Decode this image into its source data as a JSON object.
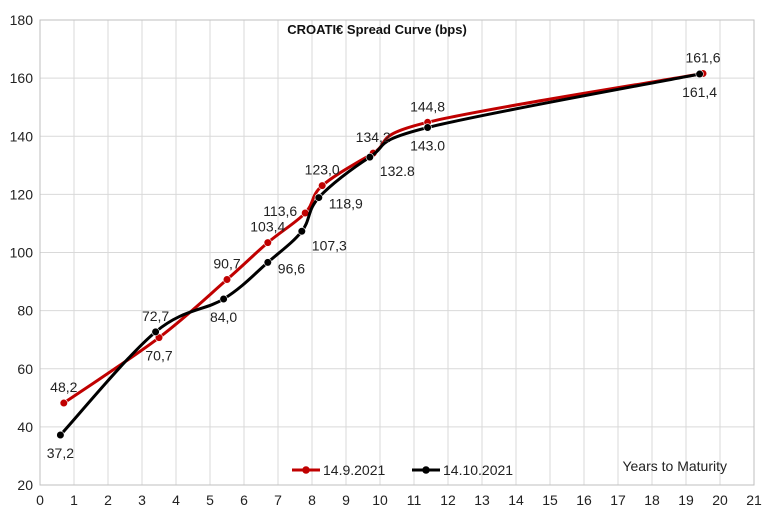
{
  "chart_data": {
    "type": "line",
    "title": "CROATI€ Spread Curve (bps)",
    "xlabel": "Years to Maturity",
    "ylabel": "",
    "xlim": [
      0,
      21
    ],
    "ylim": [
      20,
      180
    ],
    "xticks": [
      "0",
      "1",
      "2",
      "3",
      "4",
      "5",
      "6",
      "7",
      "8",
      "9",
      "10",
      "11",
      "12",
      "13",
      "14",
      "15",
      "16",
      "17",
      "18",
      "19",
      "20",
      "21"
    ],
    "yticks": [
      "20",
      "40",
      "60",
      "80",
      "100",
      "120",
      "140",
      "160",
      "180"
    ],
    "grid": true,
    "legend_position": "bottom-center",
    "series": [
      {
        "name": "14.9.2021",
        "color": "#c00000",
        "x": [
          0.7,
          3.5,
          5.5,
          6.7,
          7.8,
          8.3,
          9.8,
          11.4,
          19.5
        ],
        "y": [
          48.2,
          70.7,
          90.7,
          103.4,
          113.6,
          123.0,
          134.2,
          144.8,
          161.6
        ],
        "labels": [
          "48,2",
          "70,7",
          "90,7",
          "103,4",
          "113,6",
          "123,0",
          "134,2",
          "144,8",
          "161,6"
        ],
        "label_pos": [
          "above",
          "below",
          "above",
          "above",
          "left",
          "above",
          "above",
          "above",
          "above"
        ]
      },
      {
        "name": "14.10.2021",
        "color": "#000000",
        "x": [
          0.6,
          3.4,
          5.4,
          6.7,
          7.7,
          8.2,
          9.7,
          11.4,
          19.4
        ],
        "y": [
          37.2,
          72.7,
          84.0,
          96.6,
          107.3,
          118.9,
          132.8,
          143.0,
          161.4
        ],
        "labels": [
          "37,2",
          "72,7",
          "84,0",
          "96,6",
          "107,3",
          "118,9",
          "132.8",
          "143.0",
          "161,4"
        ],
        "label_pos": [
          "below",
          "above",
          "below",
          "right",
          "below-right",
          "right",
          "below-right",
          "below",
          "below"
        ]
      }
    ]
  }
}
